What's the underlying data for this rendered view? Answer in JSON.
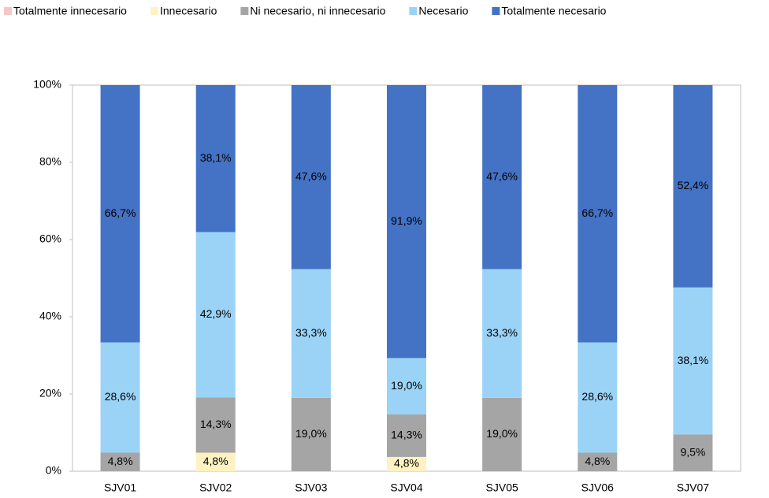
{
  "chart_data": {
    "type": "bar",
    "stack": "percent",
    "categories": [
      "SJV01",
      "SJV02",
      "SJV03",
      "SJV04",
      "SJV05",
      "SJV06",
      "SJV07"
    ],
    "series": [
      {
        "name": "Totalmente innecesario",
        "color": "#f4c7c3",
        "values": [
          null,
          null,
          null,
          null,
          null,
          null,
          null
        ],
        "value_labels": [
          null,
          null,
          null,
          null,
          null,
          null,
          null
        ]
      },
      {
        "name": "Innecesario",
        "color": "#fff2c2",
        "values": [
          null,
          4.8,
          null,
          4.8,
          null,
          null,
          null
        ],
        "value_labels": [
          null,
          "4,8%",
          null,
          "4,8%",
          null,
          null,
          null
        ]
      },
      {
        "name": "Ni necesario, ni innecesario",
        "color": "#a5a5a5",
        "values": [
          4.8,
          14.3,
          19.0,
          14.3,
          19.0,
          4.8,
          9.5
        ],
        "value_labels": [
          "4,8%",
          "14,3%",
          "19,0%",
          "14,3%",
          "19,0%",
          "4,8%",
          "9,5%"
        ]
      },
      {
        "name": "Necesario",
        "color": "#9bd3f7",
        "values": [
          28.6,
          42.9,
          33.3,
          19.0,
          33.3,
          28.6,
          38.1
        ],
        "value_labels": [
          "28,6%",
          "42,9%",
          "33,3%",
          "19,0%",
          "33,3%",
          "28,6%",
          "38,1%"
        ]
      },
      {
        "name": "Totalmente necesario",
        "color": "#4472c4",
        "values": [
          66.7,
          38.1,
          47.6,
          91.9,
          47.6,
          66.7,
          52.4
        ],
        "value_labels": [
          "66,7%",
          "38,1%",
          "47,6%",
          "91,9%",
          "47,6%",
          "66,7%",
          "52,4%"
        ]
      }
    ],
    "ylim": [
      0,
      100
    ],
    "yticks": [
      {
        "value": 0,
        "label": "0%"
      },
      {
        "value": 20,
        "label": "20%"
      },
      {
        "value": 40,
        "label": "40%"
      },
      {
        "value": 60,
        "label": "60%"
      },
      {
        "value": 80,
        "label": "80%"
      },
      {
        "value": 100,
        "label": "100%"
      }
    ],
    "legend": "top"
  }
}
